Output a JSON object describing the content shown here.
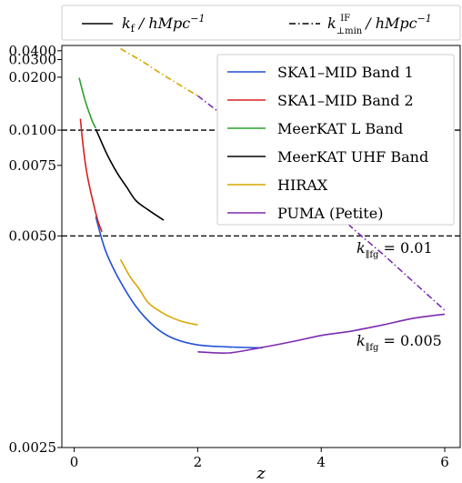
{
  "chart_data": {
    "type": "line",
    "xlabel": "z",
    "ylabel": "",
    "xlim": [
      -0.2,
      6.25
    ],
    "ylim": [
      0.0025,
      0.05
    ],
    "y_scale": "reciprocal",
    "x_ticks": [
      0,
      2,
      4,
      6
    ],
    "x_tick_labels": [
      "0",
      "2",
      "4",
      "6"
    ],
    "y_ticks": [
      0.0025,
      0.005,
      0.0075,
      0.01,
      0.02,
      0.03,
      0.04
    ],
    "y_tick_labels": [
      "0.0025",
      "0.0050",
      "0.0075",
      "0.0100",
      "0.0200",
      "0.0300",
      "0.0400"
    ],
    "top_legend": [
      {
        "label": "k_f / hMpc^-1",
        "style": "solid",
        "color": "#000000"
      },
      {
        "label": "k^IF_⊥min / hMpc^-1",
        "style": "dashdot",
        "color": "#000000"
      }
    ],
    "legend_position": "top-right",
    "series": [
      {
        "name": "SKA1–MID Band 1",
        "color": "#1f4fd6",
        "style": "solid",
        "x": [
          0.35,
          0.5,
          0.7,
          1.0,
          1.3,
          1.6,
          2.0,
          2.5,
          3.05
        ],
        "y": [
          0.0055,
          0.0047,
          0.0042,
          0.00375,
          0.0035,
          0.00337,
          0.0033,
          0.00328,
          0.00327
        ]
      },
      {
        "name": "SKA1–MID Band 2",
        "color": "#d62020",
        "style": "solid",
        "x": [
          0.1,
          0.15,
          0.2,
          0.25,
          0.3,
          0.35,
          0.4,
          0.45
        ],
        "y": [
          0.0112,
          0.0085,
          0.0072,
          0.0065,
          0.006,
          0.0056,
          0.0053,
          0.0051
        ]
      },
      {
        "name": "MeerKAT L Band",
        "color": "#2ca02c",
        "style": "solid",
        "x": [
          0.08,
          0.12,
          0.16,
          0.2,
          0.25,
          0.3,
          0.35
        ],
        "y": [
          0.0198,
          0.0168,
          0.0146,
          0.0131,
          0.0118,
          0.0108,
          0.0102
        ]
      },
      {
        "name": "MeerKAT UHF Band",
        "color": "#000000",
        "style": "solid",
        "x": [
          0.35,
          0.45,
          0.55,
          0.7,
          0.85,
          1.0,
          1.2,
          1.45
        ],
        "y": [
          0.0101,
          0.0089,
          0.008,
          0.0071,
          0.0065,
          0.006,
          0.0057,
          0.0054
        ]
      },
      {
        "name": "HIRAX",
        "color": "#d9a600",
        "style": "solid",
        "x": [
          0.75,
          0.9,
          1.05,
          1.2,
          1.4,
          1.6,
          1.8,
          2.0
        ],
        "y": [
          0.0045,
          0.0042,
          0.004,
          0.0038,
          0.00368,
          0.0036,
          0.00355,
          0.00352
        ]
      },
      {
        "name": "PUMA (Petite)",
        "color": "#7d2bb0",
        "style": "solid",
        "x": [
          2.0,
          2.5,
          3.0,
          3.5,
          4.0,
          4.5,
          5.0,
          5.5,
          6.0
        ],
        "y": [
          0.00323,
          0.00322,
          0.00327,
          0.00333,
          0.0034,
          0.00345,
          0.00352,
          0.0036,
          0.00365
        ]
      },
      {
        "name": "",
        "color": "#d9a600",
        "style": "dashdot",
        "x": [
          0.75,
          0.9,
          1.05,
          1.2,
          1.4,
          1.6,
          1.8,
          2.0
        ],
        "y": [
          0.0435,
          0.0356,
          0.0301,
          0.0259,
          0.0216,
          0.0187,
          0.0165,
          0.0148
        ]
      },
      {
        "name": "",
        "color": "#7d2bb0",
        "style": "dashdot",
        "x": [
          2.0,
          2.5,
          3.0,
          3.5,
          4.0,
          4.5,
          5.0,
          5.5,
          6.0
        ],
        "y": [
          0.0148,
          0.0111,
          0.0089,
          0.0073,
          0.0061,
          0.0052,
          0.0046,
          0.0041,
          0.0037
        ]
      }
    ],
    "annotations": [
      {
        "text": "k_||fg = 0.01",
        "y": 0.01,
        "line": "dashed"
      },
      {
        "text": "k_||fg = 0.005",
        "y": 0.005,
        "line": "dashed"
      }
    ]
  }
}
